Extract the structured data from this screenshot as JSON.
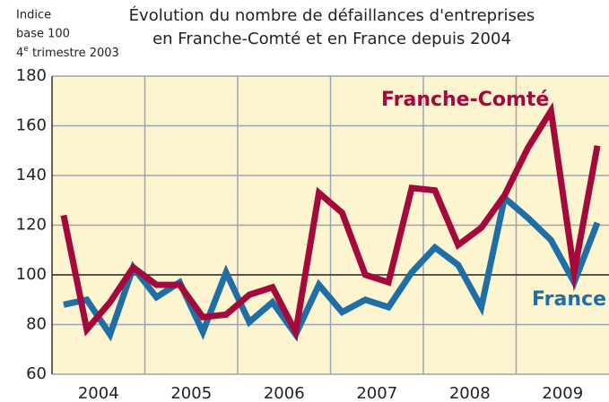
{
  "chart_data": {
    "type": "line",
    "title": [
      "Évolution du nombre de défaillances d'entreprises",
      "en Franche-Comté et en France depuis 2004"
    ],
    "note": {
      "line1": "Indice",
      "line2": "base 100",
      "line3": {
        "number": "4",
        "sup": "e",
        "rest": " trimestre 2003"
      }
    },
    "categories": [
      "2004",
      null,
      null,
      null,
      "2005",
      null,
      null,
      null,
      "2006",
      null,
      null,
      null,
      "2007",
      null,
      null,
      null,
      "2008",
      null,
      null,
      null,
      "2009",
      null,
      null,
      null
    ],
    "series": [
      {
        "name": "Franche-Comté",
        "color": "#a3093b",
        "values": [
          124,
          78,
          89,
          103,
          96,
          96,
          83,
          84,
          92,
          95,
          77,
          133,
          125,
          100,
          97,
          135,
          134,
          112,
          119,
          132,
          151,
          166,
          101,
          152
        ]
      },
      {
        "name": "France",
        "color": "#1f6ea6",
        "values": [
          88,
          90,
          76,
          103,
          91,
          97,
          77,
          101,
          81,
          89,
          76,
          96,
          85,
          90,
          87,
          101,
          111,
          104,
          87,
          131,
          123,
          114,
          97,
          121
        ]
      }
    ],
    "ylim": [
      60,
      180
    ],
    "yticks": [
      60,
      80,
      100,
      120,
      140,
      160,
      180
    ],
    "grid": true
  }
}
